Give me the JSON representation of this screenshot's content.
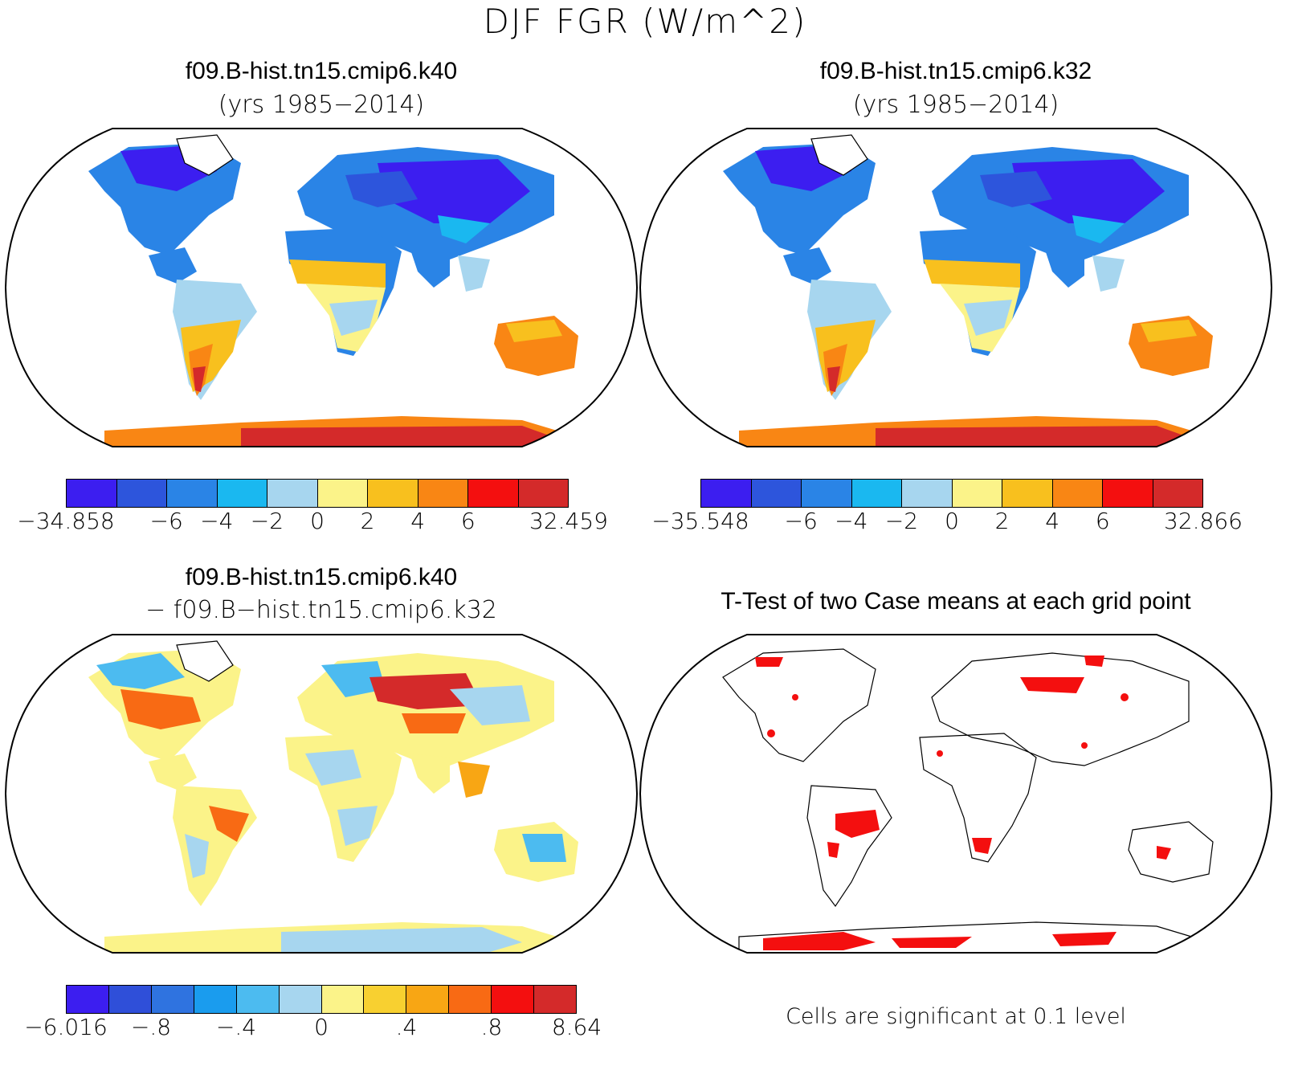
{
  "main_title": "DJF FGR (W/m^2)",
  "panels": {
    "top_left": {
      "title": "f09.B-hist.tn15.cmip6.k40",
      "subtitle": "(yrs 1985−2014)"
    },
    "top_right": {
      "title": "f09.B-hist.tn15.cmip6.k32",
      "subtitle": "(yrs 1985−2014)"
    },
    "bottom_left": {
      "title": "f09.B-hist.tn15.cmip6.k40",
      "subtitle": "− f09.B−hist.tn15.cmip6.k32"
    },
    "bottom_right": {
      "title": "T-Test of two Case means at each grid point",
      "note": "Cells are significant at 0.1 level"
    }
  },
  "colorbars": {
    "top_left": {
      "colors": [
        "#3c1ef0",
        "#2d55dc",
        "#2a84e6",
        "#1ab8f0",
        "#a7d6ef",
        "#fbf389",
        "#f8c01e",
        "#f98614",
        "#f40f0f",
        "#d42a2a"
      ],
      "labels": [
        "−34.858",
        "−6",
        "−4",
        "−2",
        "0",
        "2",
        "4",
        "6",
        "32.459"
      ]
    },
    "top_right": {
      "colors": [
        "#3c1ef0",
        "#2d55dc",
        "#2a84e6",
        "#1ab8f0",
        "#a7d6ef",
        "#fbf389",
        "#f8c01e",
        "#f98614",
        "#f40f0f",
        "#d42a2a"
      ],
      "labels": [
        "−35.548",
        "−6",
        "−4",
        "−2",
        "0",
        "2",
        "4",
        "6",
        "32.866"
      ]
    },
    "bottom_left": {
      "colors": [
        "#3c1ef0",
        "#2f4fd9",
        "#2f73e0",
        "#1a9cee",
        "#4cbbf0",
        "#a7d6ef",
        "#fbf389",
        "#f8d030",
        "#f8a614",
        "#f86a14",
        "#f40f0f",
        "#d42a2a"
      ],
      "labels": [
        "−6.016",
        "−.8",
        "−.4",
        "0",
        ".4",
        ".8",
        "8.64"
      ]
    }
  },
  "icons": {
    "map": "robinson-world-map"
  }
}
